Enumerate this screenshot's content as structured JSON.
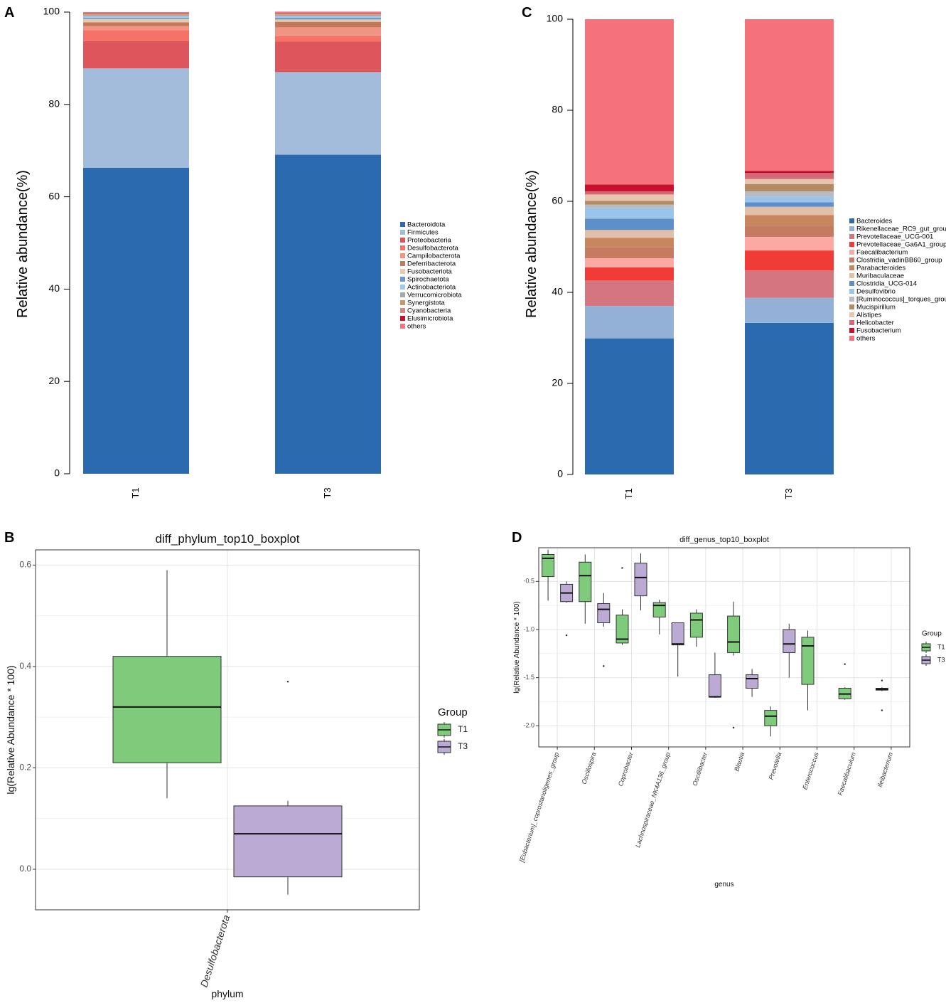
{
  "panels": {
    "A": {
      "letter": "A",
      "chart_data": {
        "type": "bar",
        "stacked": true,
        "ylabel": "Relative abundance(%)",
        "ylim": [
          0,
          100
        ],
        "yticks": [
          0,
          20,
          40,
          60,
          80,
          100
        ],
        "categories": [
          "T1",
          "T3"
        ],
        "series": [
          {
            "name": "Bacteroidota",
            "color": "#2c6ab0",
            "values": [
              66.3,
              69.1
            ]
          },
          {
            "name": "Firmicutes",
            "color": "#a3bcdc",
            "values": [
              21.5,
              17.9
            ]
          },
          {
            "name": "Proteobacteria",
            "color": "#dc565c",
            "values": [
              5.9,
              6.6
            ]
          },
          {
            "name": "Desulfobacterota",
            "color": "#f67267",
            "values": [
              2.4,
              1.2
            ]
          },
          {
            "name": "Campilobacterota",
            "color": "#f19483",
            "values": [
              0.9,
              1.9
            ]
          },
          {
            "name": "Deferribacterota",
            "color": "#c27a5a",
            "values": [
              0.8,
              1.2
            ]
          },
          {
            "name": "Fusobacteriota",
            "color": "#e8c9ad",
            "values": [
              0.7,
              0.5
            ]
          },
          {
            "name": "Spirochaetota",
            "color": "#6b9bd1",
            "values": [
              0.3,
              0.4
            ]
          },
          {
            "name": "Actinobacteriota",
            "color": "#9fc9ea",
            "values": [
              0.3,
              0.3
            ]
          },
          {
            "name": "Verrucomicrobiota",
            "color": "#a9a9a9",
            "values": [
              0.2,
              0.2
            ]
          },
          {
            "name": "Synergistota",
            "color": "#c49a6c",
            "values": [
              0.2,
              0.2
            ]
          },
          {
            "name": "Cyanobacteria",
            "color": "#d4868a",
            "values": [
              0.2,
              0.2
            ]
          },
          {
            "name": "Elusimicrobiota",
            "color": "#c8102e",
            "values": [
              0.1,
              0.1
            ]
          },
          {
            "name": "others",
            "color": "#f4777f",
            "values": [
              0.2,
              0.3
            ]
          }
        ]
      }
    },
    "C": {
      "letter": "C",
      "chart_data": {
        "type": "bar",
        "stacked": true,
        "ylabel": "Relative abundance(%)",
        "ylim": [
          0,
          100
        ],
        "yticks": [
          0,
          20,
          40,
          60,
          80,
          100
        ],
        "categories": [
          "T1",
          "T3"
        ],
        "series": [
          {
            "name": "Bacteroides",
            "color": "#2c6ab0",
            "values": [
              29.9,
              33.3
            ]
          },
          {
            "name": "Rikenellaceae_RC9_gut_group",
            "color": "#93b1d7",
            "values": [
              7.1,
              5.5
            ]
          },
          {
            "name": "Prevotellaceae_UCG-001",
            "color": "#d57580",
            "values": [
              5.6,
              6.0
            ]
          },
          {
            "name": "Prevotellaceae_Ga6A1_group",
            "color": "#f03b37",
            "values": [
              2.9,
              4.4
            ]
          },
          {
            "name": "Faecalibacterium",
            "color": "#fca8a3",
            "values": [
              2.0,
              3.0
            ]
          },
          {
            "name": "Clostridia_vadinBB60_group",
            "color": "#c57b62",
            "values": [
              2.4,
              2.4
            ]
          },
          {
            "name": "Parabacteroides",
            "color": "#c8865f",
            "values": [
              2.1,
              2.4
            ]
          },
          {
            "name": "Muribaculaceae",
            "color": "#e0c0a8",
            "values": [
              1.7,
              1.8
            ]
          },
          {
            "name": "Clostridia_UCG-014",
            "color": "#5f8fc9",
            "values": [
              2.5,
              1.0
            ]
          },
          {
            "name": "Desulfovibrio",
            "color": "#9bc4ea",
            "values": [
              2.3,
              1.2
            ]
          },
          {
            "name": "[Ruminococcus]_torques_group",
            "color": "#b7bcc4",
            "values": [
              0.8,
              1.2
            ]
          },
          {
            "name": "Mucispirillum",
            "color": "#b38a62",
            "values": [
              0.8,
              1.6
            ]
          },
          {
            "name": "Alistipes",
            "color": "#e8c3ae",
            "values": [
              1.4,
              1.1
            ]
          },
          {
            "name": "Helicobacter",
            "color": "#cf6a74",
            "values": [
              0.7,
              1.3
            ]
          },
          {
            "name": "Fusobacterium",
            "color": "#c8102e",
            "values": [
              1.5,
              0.5
            ]
          },
          {
            "name": "others",
            "color": "#f5717b",
            "values": [
              36.3,
              33.3
            ]
          }
        ]
      }
    },
    "B": {
      "letter": "B",
      "chart_data": {
        "type": "boxplot",
        "title": "diff_phylum_top10_boxplot",
        "xlabel": "phylum",
        "ylabel": "lg(Relative Abundance * 100)",
        "ylim": [
          -0.08,
          0.63
        ],
        "yticks": [
          0.0,
          0.2,
          0.4,
          0.6
        ],
        "yticklabels": [
          "0.0",
          "0.2",
          "0.4",
          "0.6"
        ],
        "categories": [
          "Desulfobacterota"
        ],
        "legend": {
          "title": "Group",
          "entries": [
            "T1",
            "T3"
          ],
          "colors": [
            "#7fcb7c",
            "#bbaad3"
          ]
        },
        "boxes": [
          {
            "category": "Desulfobacterota",
            "group": "T1",
            "min": 0.14,
            "q1": 0.21,
            "median": 0.32,
            "q3": 0.42,
            "max": 0.59,
            "outliers": []
          },
          {
            "category": "Desulfobacterota",
            "group": "T3",
            "min": -0.05,
            "q1": -0.015,
            "median": 0.07,
            "q3": 0.125,
            "max": 0.135,
            "outliers": [
              0.37
            ]
          }
        ]
      }
    },
    "D": {
      "letter": "D",
      "chart_data": {
        "type": "boxplot",
        "title": "diff_genus_top10_boxplot",
        "xlabel": "genus",
        "ylabel": "lg(Relative Abundance * 100)",
        "ylim": [
          -2.22,
          -0.15
        ],
        "yticks": [
          -0.5,
          -1.0,
          -1.5,
          -2.0
        ],
        "yticklabels": [
          "-0.5",
          "-1.0",
          "-1.5",
          "-2.0"
        ],
        "categories": [
          "[Eubacterium]_coprostanoligenes_group",
          "Oscillospira",
          "Coprobacter",
          "Lachnospiraceae_NK4A136_group",
          "Oscillibacter",
          "Blautia",
          "Prevotella",
          "Enterococcus",
          "Faecalibaculum",
          "Ileibacterium"
        ],
        "legend": {
          "title": "Group",
          "entries": [
            "T1",
            "T3"
          ],
          "colors": [
            "#7fcb7c",
            "#bbaad3"
          ]
        },
        "boxes": [
          {
            "category": "[Eubacterium]_coprostanoligenes_group",
            "group": "T1",
            "min": -0.7,
            "q1": -0.45,
            "median": -0.26,
            "q3": -0.22,
            "max": -0.17,
            "outliers": []
          },
          {
            "category": "[Eubacterium]_coprostanoligenes_group",
            "group": "T3",
            "min": -0.72,
            "q1": -0.71,
            "median": -0.62,
            "q3": -0.53,
            "max": -0.5,
            "outliers": [
              -1.06
            ]
          },
          {
            "category": "Oscillospira",
            "group": "T1",
            "min": -0.94,
            "q1": -0.71,
            "median": -0.44,
            "q3": -0.3,
            "max": -0.22,
            "outliers": []
          },
          {
            "category": "Oscillospira",
            "group": "T3",
            "min": -0.97,
            "q1": -0.93,
            "median": -0.79,
            "q3": -0.73,
            "max": -0.62,
            "outliers": [
              -1.38
            ]
          },
          {
            "category": "Coprobacter",
            "group": "T1",
            "min": -1.16,
            "q1": -1.14,
            "median": -1.1,
            "q3": -0.85,
            "max": -0.79,
            "outliers": [
              -0.36
            ]
          },
          {
            "category": "Coprobacter",
            "group": "T3",
            "min": -0.8,
            "q1": -0.65,
            "median": -0.46,
            "q3": -0.31,
            "max": -0.21,
            "outliers": []
          },
          {
            "category": "Lachnospiraceae_NK4A136_group",
            "group": "T1",
            "min": -1.05,
            "q1": -0.87,
            "median": -0.75,
            "q3": -0.72,
            "max": -0.69,
            "outliers": []
          },
          {
            "category": "Lachnospiraceae_NK4A136_group",
            "group": "T3",
            "min": -1.49,
            "q1": -1.16,
            "median": -1.15,
            "q3": -0.93,
            "max": -0.93,
            "outliers": []
          },
          {
            "category": "Oscillibacter",
            "group": "T1",
            "min": -1.18,
            "q1": -1.08,
            "median": -0.9,
            "q3": -0.83,
            "max": -0.79,
            "outliers": []
          },
          {
            "category": "Oscillibacter",
            "group": "T3",
            "min": -1.71,
            "q1": -1.7,
            "median": -1.7,
            "q3": -1.47,
            "max": -1.24,
            "outliers": []
          },
          {
            "category": "Blautia",
            "group": "T1",
            "min": -1.27,
            "q1": -1.24,
            "median": -1.13,
            "q3": -0.86,
            "max": -0.71,
            "outliers": [
              -2.02
            ]
          },
          {
            "category": "Blautia",
            "group": "T3",
            "min": -1.7,
            "q1": -1.61,
            "median": -1.51,
            "q3": -1.47,
            "max": -1.41,
            "outliers": []
          },
          {
            "category": "Prevotella",
            "group": "T1",
            "min": -2.11,
            "q1": -2.0,
            "median": -1.9,
            "q3": -1.84,
            "max": -1.8,
            "outliers": []
          },
          {
            "category": "Prevotella",
            "group": "T3",
            "min": -1.5,
            "q1": -1.24,
            "median": -1.15,
            "q3": -1.0,
            "max": -0.94,
            "outliers": []
          },
          {
            "category": "Enterococcus",
            "group": "T1",
            "min": -1.84,
            "q1": -1.57,
            "median": -1.17,
            "q3": -1.08,
            "max": -1.01,
            "outliers": []
          },
          {
            "category": "Faecalibaculum",
            "group": "T1",
            "min": -1.73,
            "q1": -1.72,
            "median": -1.67,
            "q3": -1.61,
            "max": -1.6,
            "outliers": [
              -1.36
            ]
          },
          {
            "category": "Ileibacterium",
            "group": "T1",
            "min": -1.64,
            "q1": -1.63,
            "median": -1.62,
            "q3": -1.61,
            "max": -1.6,
            "outliers": [
              -1.53,
              -1.84
            ]
          }
        ]
      }
    }
  }
}
